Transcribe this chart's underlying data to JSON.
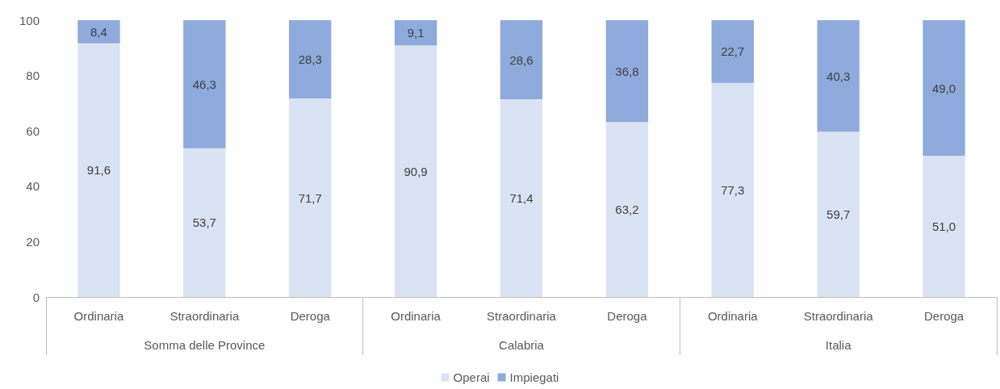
{
  "chart_data": {
    "type": "bar",
    "stacked": true,
    "categories": [
      "Ordinaria",
      "Straordinaria",
      "Deroga",
      "Ordinaria",
      "Straordinaria",
      "Deroga",
      "Ordinaria",
      "Straordinaria",
      "Deroga"
    ],
    "annotations": [
      "Somma delle Province",
      "Calabria",
      "Italia"
    ],
    "series": [
      {
        "name": "Operai",
        "color": "#dae3f3",
        "values": [
          91.6,
          53.7,
          71.7,
          90.9,
          71.4,
          63.2,
          77.3,
          59.7,
          51.0
        ],
        "value_labels": [
          "91,6",
          "53,7",
          "71,7",
          "90,9",
          "71,4",
          "63,2",
          "77,3",
          "59,7",
          "51,0"
        ]
      },
      {
        "name": "Impiegati",
        "color": "#8faadc",
        "values": [
          8.4,
          46.3,
          28.3,
          9.1,
          28.6,
          36.8,
          22.7,
          40.3,
          49.0
        ],
        "value_labels": [
          "8,4",
          "46,3",
          "28,3",
          "9,1",
          "28,6",
          "36,8",
          "22,7",
          "40,3",
          "49,0"
        ]
      }
    ],
    "ylim": [
      0,
      100
    ],
    "yticks": [
      0,
      20,
      40,
      60,
      80,
      100
    ],
    "grid": false,
    "legend": "bottom"
  }
}
